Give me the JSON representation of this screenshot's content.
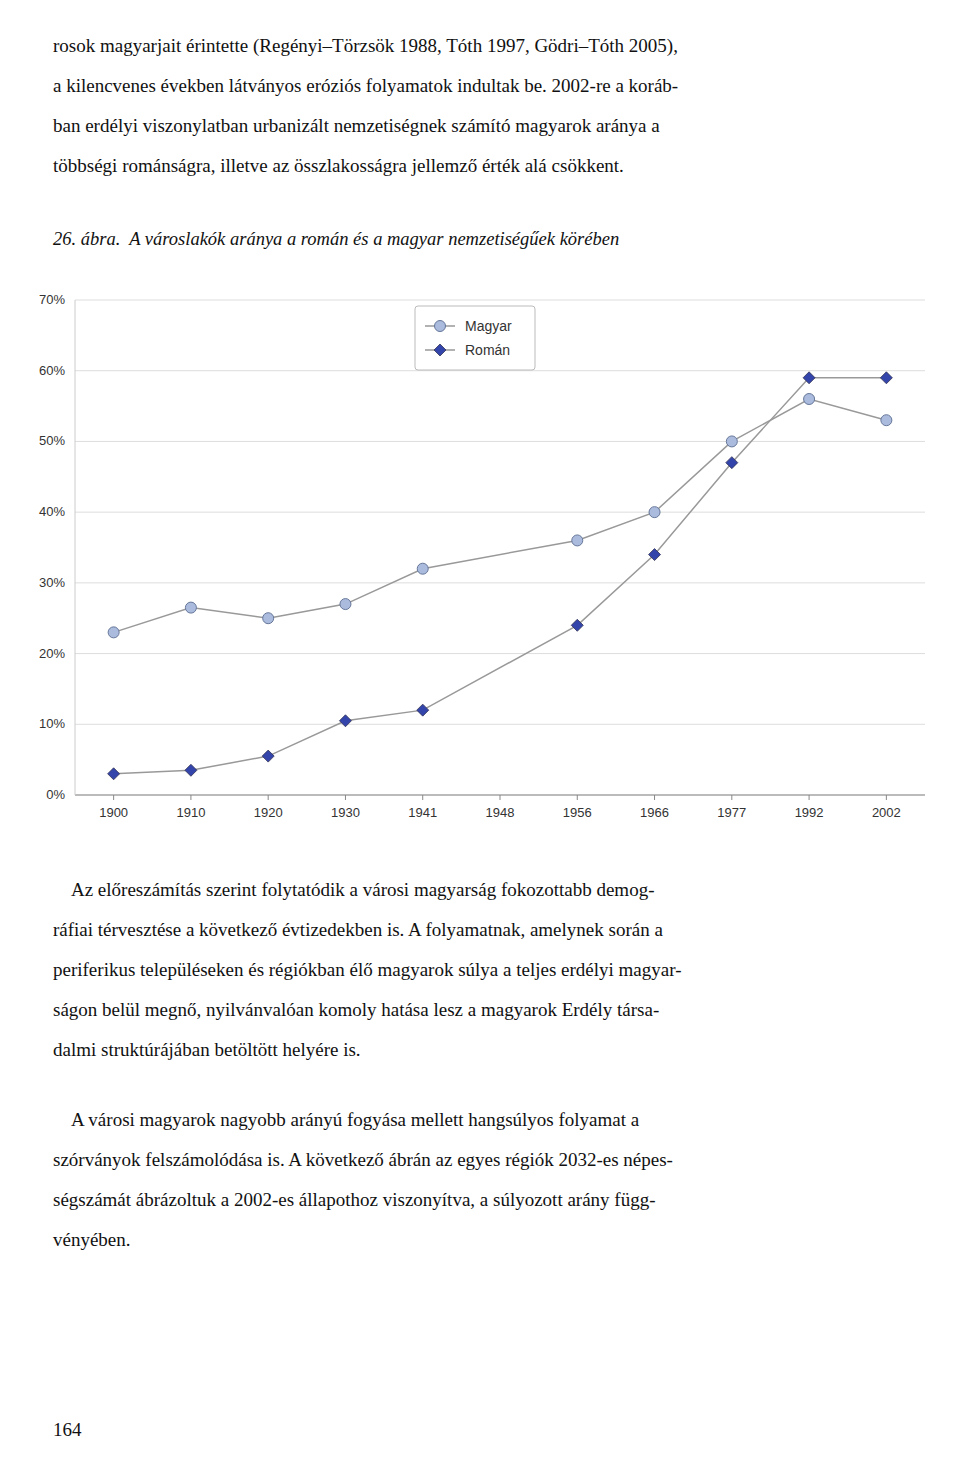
{
  "text_above": [
    "rosok magyarjait érintette (Regényi–Törzsök 1988, Tóth 1997, Gödri–Tóth 2005),",
    "a kilencvenes években látványos eróziós folyamatok indultak be. 2002-re a koráb-",
    "ban erdélyi viszonylatban urbanizált nemzetiségnek számító magyarok aránya a",
    "többségi románságra, illetve az összlakosságra jellemző érték alá csökkent."
  ],
  "text_below": [
    [
      "    Az előreszámítás szerint folytatódik a városi magyarság fokozottabb demog-",
      "ráfiai térvesztése a következő évtizedekben is. A folyamatnak, amelynek során a",
      "periferikus településeken és régiókban élő magyarok súlya a teljes erdélyi magyar-",
      "ságon belül megnő, nyilvánvalóan komoly hatása lesz a magyarok Erdély társa-",
      "dalmi struktúrájában betöltött helyére is."
    ],
    [
      "    A városi magyarok nagyobb arányú fogyása mellett hangsúlyos folyamat a",
      "szórványok felszámolódása is. A következő ábrán az egyes régiók 2032-es népes-",
      "ségszámát ábrázoltuk a 2002-es állapothoz viszonyítva, a súlyozott arány függ-",
      "vényében."
    ]
  ],
  "page_number": "164",
  "chart_data": {
    "type": "line",
    "title": "26. ábra.  A városlakók aránya a román és a magyar nemzetiségűek körében",
    "categories": [
      "1900",
      "1910",
      "1920",
      "1930",
      "1941",
      "1948",
      "1956",
      "1966",
      "1977",
      "1992",
      "2002"
    ],
    "series": [
      {
        "name": "Magyar",
        "color": "#aabbdd",
        "marker": "circle",
        "x": [
          "1900",
          "1910",
          "1920",
          "1930",
          "1941",
          "1956",
          "1966",
          "1977",
          "1992",
          "2002"
        ],
        "values": [
          0.23,
          0.265,
          0.25,
          0.27,
          0.32,
          0.36,
          0.4,
          0.5,
          0.56,
          0.53
        ]
      },
      {
        "name": "Román",
        "color": "#3344aa",
        "marker": "diamond",
        "x": [
          "1900",
          "1910",
          "1920",
          "1930",
          "1941",
          "1956",
          "1966",
          "1977",
          "1992",
          "2002"
        ],
        "values": [
          0.03,
          0.035,
          0.055,
          0.105,
          0.12,
          0.24,
          0.34,
          0.47,
          0.59,
          0.59
        ]
      }
    ],
    "ylim": [
      0.0,
      0.7
    ],
    "yticks": [
      {
        "value": 0.0,
        "label": "0%"
      },
      {
        "value": 0.1,
        "label": "10%"
      },
      {
        "value": 0.2,
        "label": "20%"
      },
      {
        "value": 0.3,
        "label": "30%"
      },
      {
        "value": 0.4,
        "label": "40%"
      },
      {
        "value": 0.5,
        "label": "50%"
      },
      {
        "value": 0.6,
        "label": "60%"
      },
      {
        "value": 0.7,
        "label": "70%"
      }
    ],
    "grid": true,
    "legend": "top"
  }
}
